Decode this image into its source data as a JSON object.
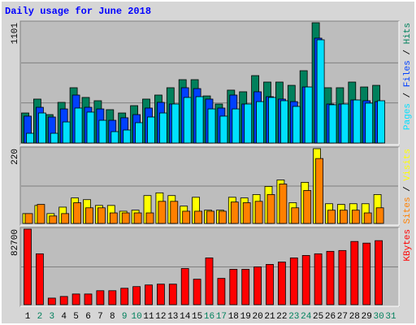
{
  "title": "Daily usage for June 2018",
  "legend_separator": "/",
  "chart_data": [
    {
      "type": "bar",
      "ylim": [
        0,
        1101
      ],
      "yticks": [
        1101
      ],
      "grid": [
        367,
        734
      ],
      "series": [
        {
          "name": "Hits",
          "color": "#00805c",
          "values": [
            275,
            402,
            260,
            372,
            506,
            417,
            387,
            305,
            275,
            342,
            402,
            439,
            506,
            580,
            580,
            431,
            357,
            484,
            469,
            617,
            558,
            558,
            528,
            662,
            1101,
            506,
            506,
            558,
            513,
            528,
            0
          ]
        },
        {
          "name": "Files",
          "color": "#0040ff",
          "values": [
            246,
            327,
            238,
            312,
            439,
            327,
            312,
            208,
            231,
            260,
            320,
            372,
            357,
            506,
            498,
            402,
            320,
            439,
            357,
            469,
            424,
            402,
            379,
            513,
            960,
            357,
            357,
            394,
            387,
            379,
            0
          ]
        },
        {
          "name": "Pages",
          "color": "#00e0ff",
          "values": [
            89,
            275,
            89,
            193,
            320,
            283,
            208,
            104,
            119,
            186,
            238,
            275,
            357,
            417,
            424,
            312,
            246,
            312,
            357,
            379,
            417,
            387,
            335,
            513,
            945,
            350,
            357,
            394,
            365,
            387,
            0
          ]
        }
      ]
    },
    {
      "type": "bar",
      "ylim": [
        0,
        220
      ],
      "yticks": [
        220
      ],
      "grid": [
        110
      ],
      "series": [
        {
          "name": "Visits",
          "color": "#ffff00",
          "values": [
            29,
            53,
            29,
            48,
            75,
            70,
            53,
            53,
            36,
            39,
            82,
            90,
            82,
            51,
            77,
            39,
            39,
            77,
            75,
            85,
            109,
            128,
            61,
            121,
            220,
            58,
            56,
            58,
            58,
            85,
            0
          ]
        },
        {
          "name": "Sites",
          "color": "#ff8000",
          "values": [
            29,
            56,
            22,
            29,
            61,
            46,
            46,
            31,
            31,
            31,
            31,
            65,
            65,
            36,
            36,
            36,
            36,
            63,
            61,
            65,
            85,
            116,
            46,
            97,
            191,
            39,
            39,
            39,
            31,
            46,
            0
          ]
        }
      ]
    },
    {
      "type": "bar",
      "ylim": [
        0,
        82700
      ],
      "yticks": [
        82700
      ],
      "grid": [
        41350
      ],
      "categories": [
        "1",
        "2",
        "3",
        "4",
        "5",
        "6",
        "7",
        "8",
        "9",
        "10",
        "11",
        "12",
        "13",
        "14",
        "15",
        "16",
        "17",
        "18",
        "19",
        "20",
        "21",
        "22",
        "23",
        "24",
        "25",
        "26",
        "27",
        "28",
        "29",
        "30",
        "31"
      ],
      "category_colors": [
        "#000000",
        "#00805c",
        "#00805c",
        "#000000",
        "#000000",
        "#000000",
        "#000000",
        "#000000",
        "#00805c",
        "#00805c",
        "#000000",
        "#000000",
        "#000000",
        "#000000",
        "#000000",
        "#00805c",
        "#00805c",
        "#000000",
        "#000000",
        "#000000",
        "#000000",
        "#000000",
        "#00805c",
        "#00805c",
        "#000000",
        "#000000",
        "#000000",
        "#000000",
        "#000000",
        "#00805c",
        "#00805c"
      ],
      "series": [
        {
          "name": "KBytes",
          "color": "#ff0000",
          "values": [
            82700,
            55700,
            7200,
            9000,
            11700,
            11700,
            15300,
            15300,
            18000,
            19800,
            21600,
            22500,
            22500,
            39600,
            27900,
            51200,
            28800,
            38700,
            38700,
            41400,
            44100,
            46700,
            51200,
            53900,
            55700,
            58400,
            59300,
            69200,
            67400,
            70100,
            0
          ]
        }
      ]
    }
  ]
}
